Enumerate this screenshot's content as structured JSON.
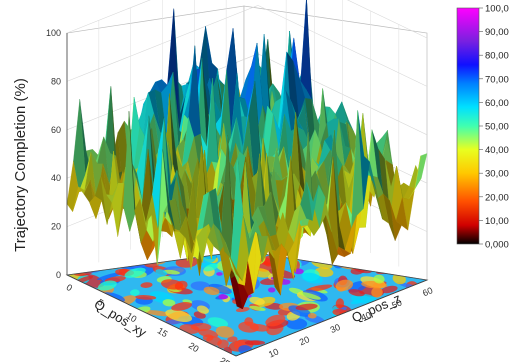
{
  "chart_data": {
    "type": "surface3d",
    "title": "",
    "zlabel": "Trajectory Completion (%)",
    "xlabel": "Q_pos_xy",
    "ylabel": "Q_pos_z",
    "zlim": [
      0,
      100
    ],
    "z_ticks": [
      "0",
      "20",
      "40",
      "60",
      "80",
      "100"
    ],
    "x_ticks": [
      "0",
      "5",
      "10",
      "15",
      "20",
      "25"
    ],
    "y_ticks": [
      "10",
      "20",
      "30",
      "40",
      "50",
      "60"
    ],
    "colorbar": {
      "range": [
        0,
        100
      ],
      "labels": [
        "100,0",
        "90,00",
        "80,00",
        "70,00",
        "60,00",
        "50,00",
        "40,00",
        "30,00",
        "20,00",
        "10,00",
        "0,000"
      ],
      "colors": [
        "#000000",
        "#ff0000",
        "#ff8c00",
        "#ffff00",
        "#9aff3c",
        "#00ffff",
        "#0096ff",
        "#0000ff",
        "#8a2be2",
        "#e000e0"
      ]
    },
    "surface_summary": {
      "baseline_level": 40,
      "typical_range": [
        20,
        60
      ],
      "peak_level": 100,
      "deep_valley_level": 0,
      "projection": "color map on bottom plane"
    }
  }
}
